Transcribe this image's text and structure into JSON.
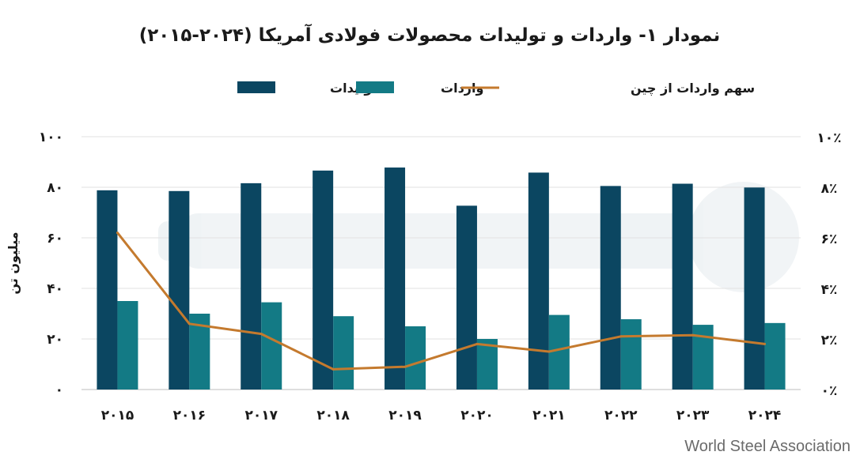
{
  "chart_data": {
    "type": "bar",
    "title": "نمودار ۱- واردات و تولیدات محصولات فولادی آمریکا (۲۰۲۴-۲۰۱۵)",
    "categories": [
      "۲۰۱۵",
      "۲۰۱۶",
      "۲۰۱۷",
      "۲۰۱۸",
      "۲۰۱۹",
      "۲۰۲۰",
      "۲۰۲۱",
      "۲۰۲۲",
      "۲۰۲۳",
      "۲۰۲۴"
    ],
    "series": [
      {
        "name": "تولیدات",
        "type": "bar",
        "axis": "left",
        "color": "#0b4661",
        "values": [
          78.8,
          78.5,
          81.6,
          86.6,
          87.8,
          72.7,
          85.8,
          80.5,
          81.4,
          79.9
        ]
      },
      {
        "name": "واردات",
        "type": "bar",
        "axis": "left",
        "color": "#137a85",
        "values": [
          35.0,
          30.0,
          34.5,
          29.0,
          25.0,
          20.0,
          29.5,
          27.8,
          25.6,
          26.3
        ]
      },
      {
        "name": "سهم واردات از چین",
        "type": "line",
        "axis": "right",
        "color": "#c47a2e",
        "values": [
          6.2,
          2.6,
          2.2,
          0.8,
          0.9,
          1.8,
          1.5,
          2.1,
          2.15,
          1.8
        ]
      }
    ],
    "ylabel": "میلیون تن",
    "ylim": [
      0,
      100
    ],
    "y_ticks": [
      "۰",
      "۲۰",
      "۴۰",
      "۶۰",
      "۸۰",
      "۱۰۰"
    ],
    "y2lim": [
      0,
      10
    ],
    "y2_ticks": [
      "۰٪",
      "۲٪",
      "۴٪",
      "۶٪",
      "۸٪",
      "۱۰٪"
    ],
    "grid": "horizontal",
    "legend_position": "top",
    "source": "World Steel Association"
  }
}
